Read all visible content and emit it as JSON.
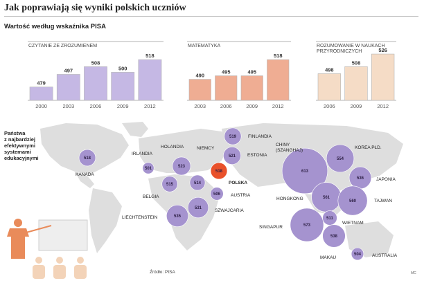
{
  "header": {
    "title": "Jak poprawiają się wyniki polskich uczniów",
    "subtitle": "Wartość według wskaźnika PISA",
    "source": "Źródło: PISA",
    "author": "MC"
  },
  "legend": {
    "lines": [
      "Państwa",
      "z najbardziej",
      "efektywnymi",
      "systemami",
      "edukacyjnymi"
    ]
  },
  "colors": {
    "reading": "#c5b8e4",
    "math": "#efad93",
    "science": "#f5dcc6",
    "bubble": "#a593cf",
    "bubble_poland": "#e9512b",
    "map_land": "#dedede",
    "bar_outline": "#b5b5b5",
    "teacher": "#e98b5a",
    "students": "#f3d3b8",
    "board": "#eeeeee"
  },
  "chart_data": [
    {
      "type": "bar",
      "title": "CZYTANIE ZE ZROZUMIENEM",
      "categories": [
        "2000",
        "2003",
        "2006",
        "2009",
        "2012"
      ],
      "values": [
        479,
        497,
        508,
        500,
        518
      ],
      "ylim": [
        460,
        530
      ]
    },
    {
      "type": "bar",
      "title": "MATEMATYKA",
      "categories": [
        "2003",
        "2006",
        "2009",
        "2012"
      ],
      "values": [
        490,
        495,
        495,
        518
      ],
      "ylim": [
        460,
        530
      ]
    },
    {
      "type": "bar",
      "title_lines": [
        "ROZUMOWANIE W NAUKACH",
        "PRZYRODNICZYCH"
      ],
      "categories": [
        "2006",
        "2009",
        "2012"
      ],
      "values": [
        498,
        508,
        526
      ],
      "ylim": [
        460,
        530
      ]
    },
    {
      "type": "bubble",
      "points": [
        {
          "name": "KANADA",
          "value": 518
        },
        {
          "name": "IRLANDIA",
          "value": 501
        },
        {
          "name": "HOLANDIA",
          "value": 523
        },
        {
          "name": "BELGIA",
          "value": 515
        },
        {
          "name": "NIEMCY",
          "value": 514
        },
        {
          "name": "POLSKA",
          "value": 518
        },
        {
          "name": "FINLANDIA",
          "value": 519
        },
        {
          "name": "ESTONIA",
          "value": 521
        },
        {
          "name": "AUSTRIA",
          "value": 506
        },
        {
          "name": "SZWAJCARIA",
          "value": 531
        },
        {
          "name": "LIECHTENSTEIN",
          "value": 535
        },
        {
          "name": "CHINY (SZANGHAJ)",
          "value": 613
        },
        {
          "name": "KOREA PŁD.",
          "value": 554
        },
        {
          "name": "JAPONIA",
          "value": 536
        },
        {
          "name": "HONGKONG",
          "value": 561
        },
        {
          "name": "TAJWAN",
          "value": 560
        },
        {
          "name": "SINGAPUR",
          "value": 573
        },
        {
          "name": "WIETNAM",
          "value": 511
        },
        {
          "name": "MAKAU",
          "value": 538
        },
        {
          "name": "AUSTRALIA",
          "value": 504
        }
      ]
    }
  ]
}
